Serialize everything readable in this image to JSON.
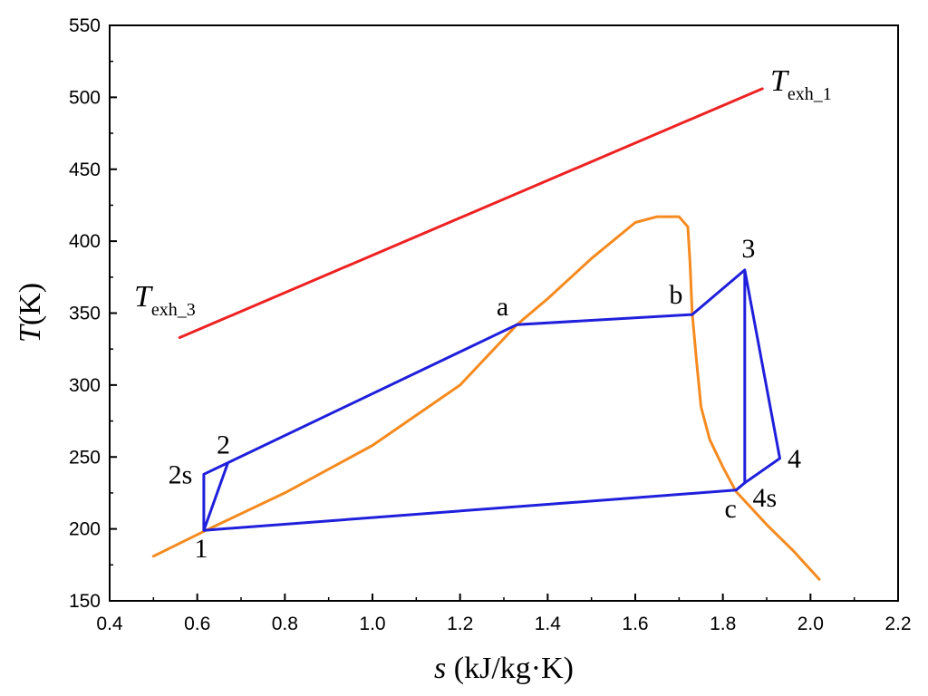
{
  "chart_data": {
    "type": "line",
    "xlabel_main": "s",
    "xlabel_rest": " (kJ/kg·K)",
    "ylabel_main": "T",
    "ylabel_rest": "(K)",
    "xlim": [
      0.4,
      2.2
    ],
    "ylim": [
      150,
      550
    ],
    "x_ticks": [
      "0.4",
      "0.6",
      "0.8",
      "1.0",
      "1.2",
      "1.4",
      "1.6",
      "1.8",
      "2.0",
      "2.2"
    ],
    "y_ticks": [
      "150",
      "200",
      "250",
      "300",
      "350",
      "400",
      "450",
      "500",
      "550"
    ],
    "colors": {
      "exhaust": "#ee2222",
      "saturation": "#f58a1f",
      "cycle": "#1f1fdc"
    },
    "series": [
      {
        "key": "texh1",
        "name_main": "T",
        "name_sub": "exh_1",
        "color": "#ee2222",
        "points": [
          [
            0.56,
            333
          ],
          [
            1.89,
            506
          ]
        ]
      },
      {
        "key": "texh3",
        "name_main": "T",
        "name_sub": "exh_3",
        "color": "#ee2222",
        "points": []
      },
      {
        "key": "saturation",
        "name": "",
        "color": "#f58a1f",
        "points": [
          [
            0.5,
            181
          ],
          [
            0.62,
            199
          ],
          [
            0.8,
            225
          ],
          [
            1.0,
            258
          ],
          [
            1.2,
            300
          ],
          [
            1.33,
            342
          ],
          [
            1.4,
            360
          ],
          [
            1.5,
            388
          ],
          [
            1.6,
            413
          ],
          [
            1.65,
            417
          ],
          [
            1.7,
            417
          ],
          [
            1.72,
            410
          ],
          [
            1.725,
            385
          ],
          [
            1.73,
            350
          ],
          [
            1.74,
            316
          ],
          [
            1.75,
            285
          ],
          [
            1.77,
            262
          ],
          [
            1.8,
            243
          ],
          [
            1.83,
            226
          ],
          [
            1.9,
            203
          ],
          [
            1.96,
            185
          ],
          [
            2.02,
            165
          ]
        ]
      },
      {
        "key": "cycle",
        "name": "",
        "color": "#1f1fdc",
        "points": [
          [
            0.615,
            199
          ],
          [
            0.615,
            238
          ],
          [
            0.67,
            246
          ],
          [
            0.615,
            199
          ],
          [
            1.83,
            227
          ],
          [
            1.85,
            232
          ],
          [
            1.93,
            249
          ],
          [
            1.85,
            380
          ],
          [
            1.85,
            232
          ],
          [
            1.85,
            380
          ],
          [
            1.73,
            349
          ],
          [
            1.33,
            342
          ],
          [
            0.67,
            246
          ]
        ]
      }
    ],
    "point_labels": [
      {
        "text": "1",
        "x": 0.615,
        "y": 199
      },
      {
        "text": "2",
        "x": 0.67,
        "y": 246
      },
      {
        "text": "2s",
        "x": 0.615,
        "y": 238
      },
      {
        "text": "a",
        "x": 1.33,
        "y": 342
      },
      {
        "text": "b",
        "x": 1.73,
        "y": 349
      },
      {
        "text": "3",
        "x": 1.85,
        "y": 380
      },
      {
        "text": "4",
        "x": 1.93,
        "y": 249
      },
      {
        "text": "4s",
        "x": 1.85,
        "y": 232
      },
      {
        "text": "c",
        "x": 1.83,
        "y": 227
      }
    ]
  }
}
